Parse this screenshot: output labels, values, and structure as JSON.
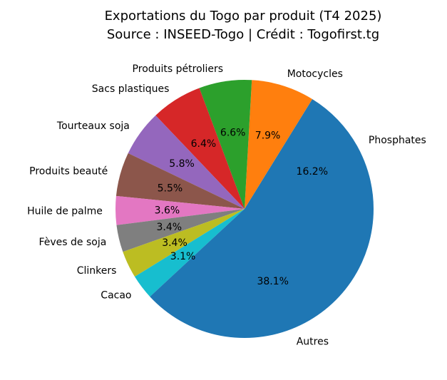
{
  "chart_data": {
    "type": "pie",
    "title": "Exportations du Togo par produit (T4 2025)",
    "subtitle": "Source : INSEED-Togo | Crédit : Togofirst.tg",
    "categories": [
      "Phosphates",
      "Motocycles",
      "Produits pétroliers",
      "Sacs plastiques",
      "Tourteaux soja",
      "Produits beauté",
      "Huile de palme",
      "Fèves de soja",
      "Clinkers",
      "Cacao",
      "Autres"
    ],
    "values": [
      16.2,
      7.9,
      6.6,
      6.4,
      5.8,
      5.5,
      3.6,
      3.4,
      3.4,
      3.1,
      38.1
    ],
    "value_labels": [
      "16.2%",
      "7.9%",
      "6.6%",
      "6.4%",
      "5.8%",
      "5.5%",
      "3.6%",
      "3.4%",
      "3.4%",
      "3.1%",
      "38.1%"
    ],
    "colors": [
      "#1f77b4",
      "#ff7f0e",
      "#2ca02c",
      "#d62728",
      "#9467bd",
      "#8c564b",
      "#e377c2",
      "#7f7f7f",
      "#bcbd22",
      "#17becf",
      "#1f77b4"
    ],
    "start_angle_deg": 0,
    "direction": "counterclockwise",
    "legend": "none"
  }
}
